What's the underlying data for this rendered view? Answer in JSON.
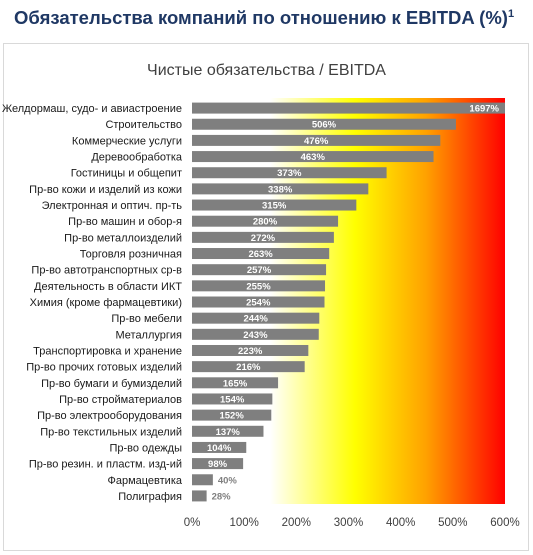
{
  "header": {
    "title": "Обязательства компаний по отношению к EBITDA (%)",
    "footnote_mark": "1"
  },
  "chart_data": {
    "type": "bar",
    "orientation": "horizontal",
    "title": "Чистые обязательства / EBITDA",
    "categories": [
      "Желдормаш, судо- и авиастроение",
      "Строительство",
      "Коммерческие услуги",
      "Деревообработка",
      "Гостиницы и общепит",
      "Пр-во кожи и изделий из кожи",
      "Электронная и оптич. пр-ть",
      "Пр-во машин и обор-я",
      "Пр-во металлоизделий",
      "Торговля розничная",
      "Пр-во автотранспортных ср-в",
      "Деятельность в области ИКТ",
      "Химия (кроме фармацевтики)",
      "Пр-во мебели",
      "Металлургия",
      "Транспортировка и хранение",
      "Пр-во прочих готовых изделий",
      "Пр-во бумаги и бумизделий",
      "Пр-во стройматериалов",
      "Пр-во электрооборудования",
      "Пр-во текстильных изделий",
      "Пр-во одежды",
      "Пр-во резин. и пластм. изд-ий",
      "Фармацевтика",
      "Полиграфия"
    ],
    "values": [
      1697,
      506,
      476,
      463,
      373,
      338,
      315,
      280,
      272,
      263,
      257,
      255,
      254,
      244,
      243,
      223,
      216,
      165,
      154,
      152,
      137,
      104,
      98,
      40,
      28
    ],
    "value_labels": [
      "1697%",
      "506%",
      "476%",
      "463%",
      "373%",
      "338%",
      "315%",
      "280%",
      "272%",
      "263%",
      "257%",
      "255%",
      "254%",
      "244%",
      "243%",
      "223%",
      "216%",
      "165%",
      "154%",
      "152%",
      "137%",
      "104%",
      "98%",
      "40%",
      "28%"
    ],
    "xlim": [
      0,
      600
    ],
    "x_ticks": [
      0,
      100,
      200,
      300,
      400,
      500,
      600
    ],
    "x_tick_labels": [
      "0%",
      "100%",
      "200%",
      "300%",
      "400%",
      "500%",
      "600%"
    ],
    "background_gradient": [
      "#ffffff",
      "#ffff00",
      "#ff9900",
      "#ff0000"
    ],
    "bar_color": "#7f7f7f",
    "label_color_inside": "#ffffff",
    "label_color_outside": "#7f7f7f",
    "legend": "none",
    "grid": false
  }
}
